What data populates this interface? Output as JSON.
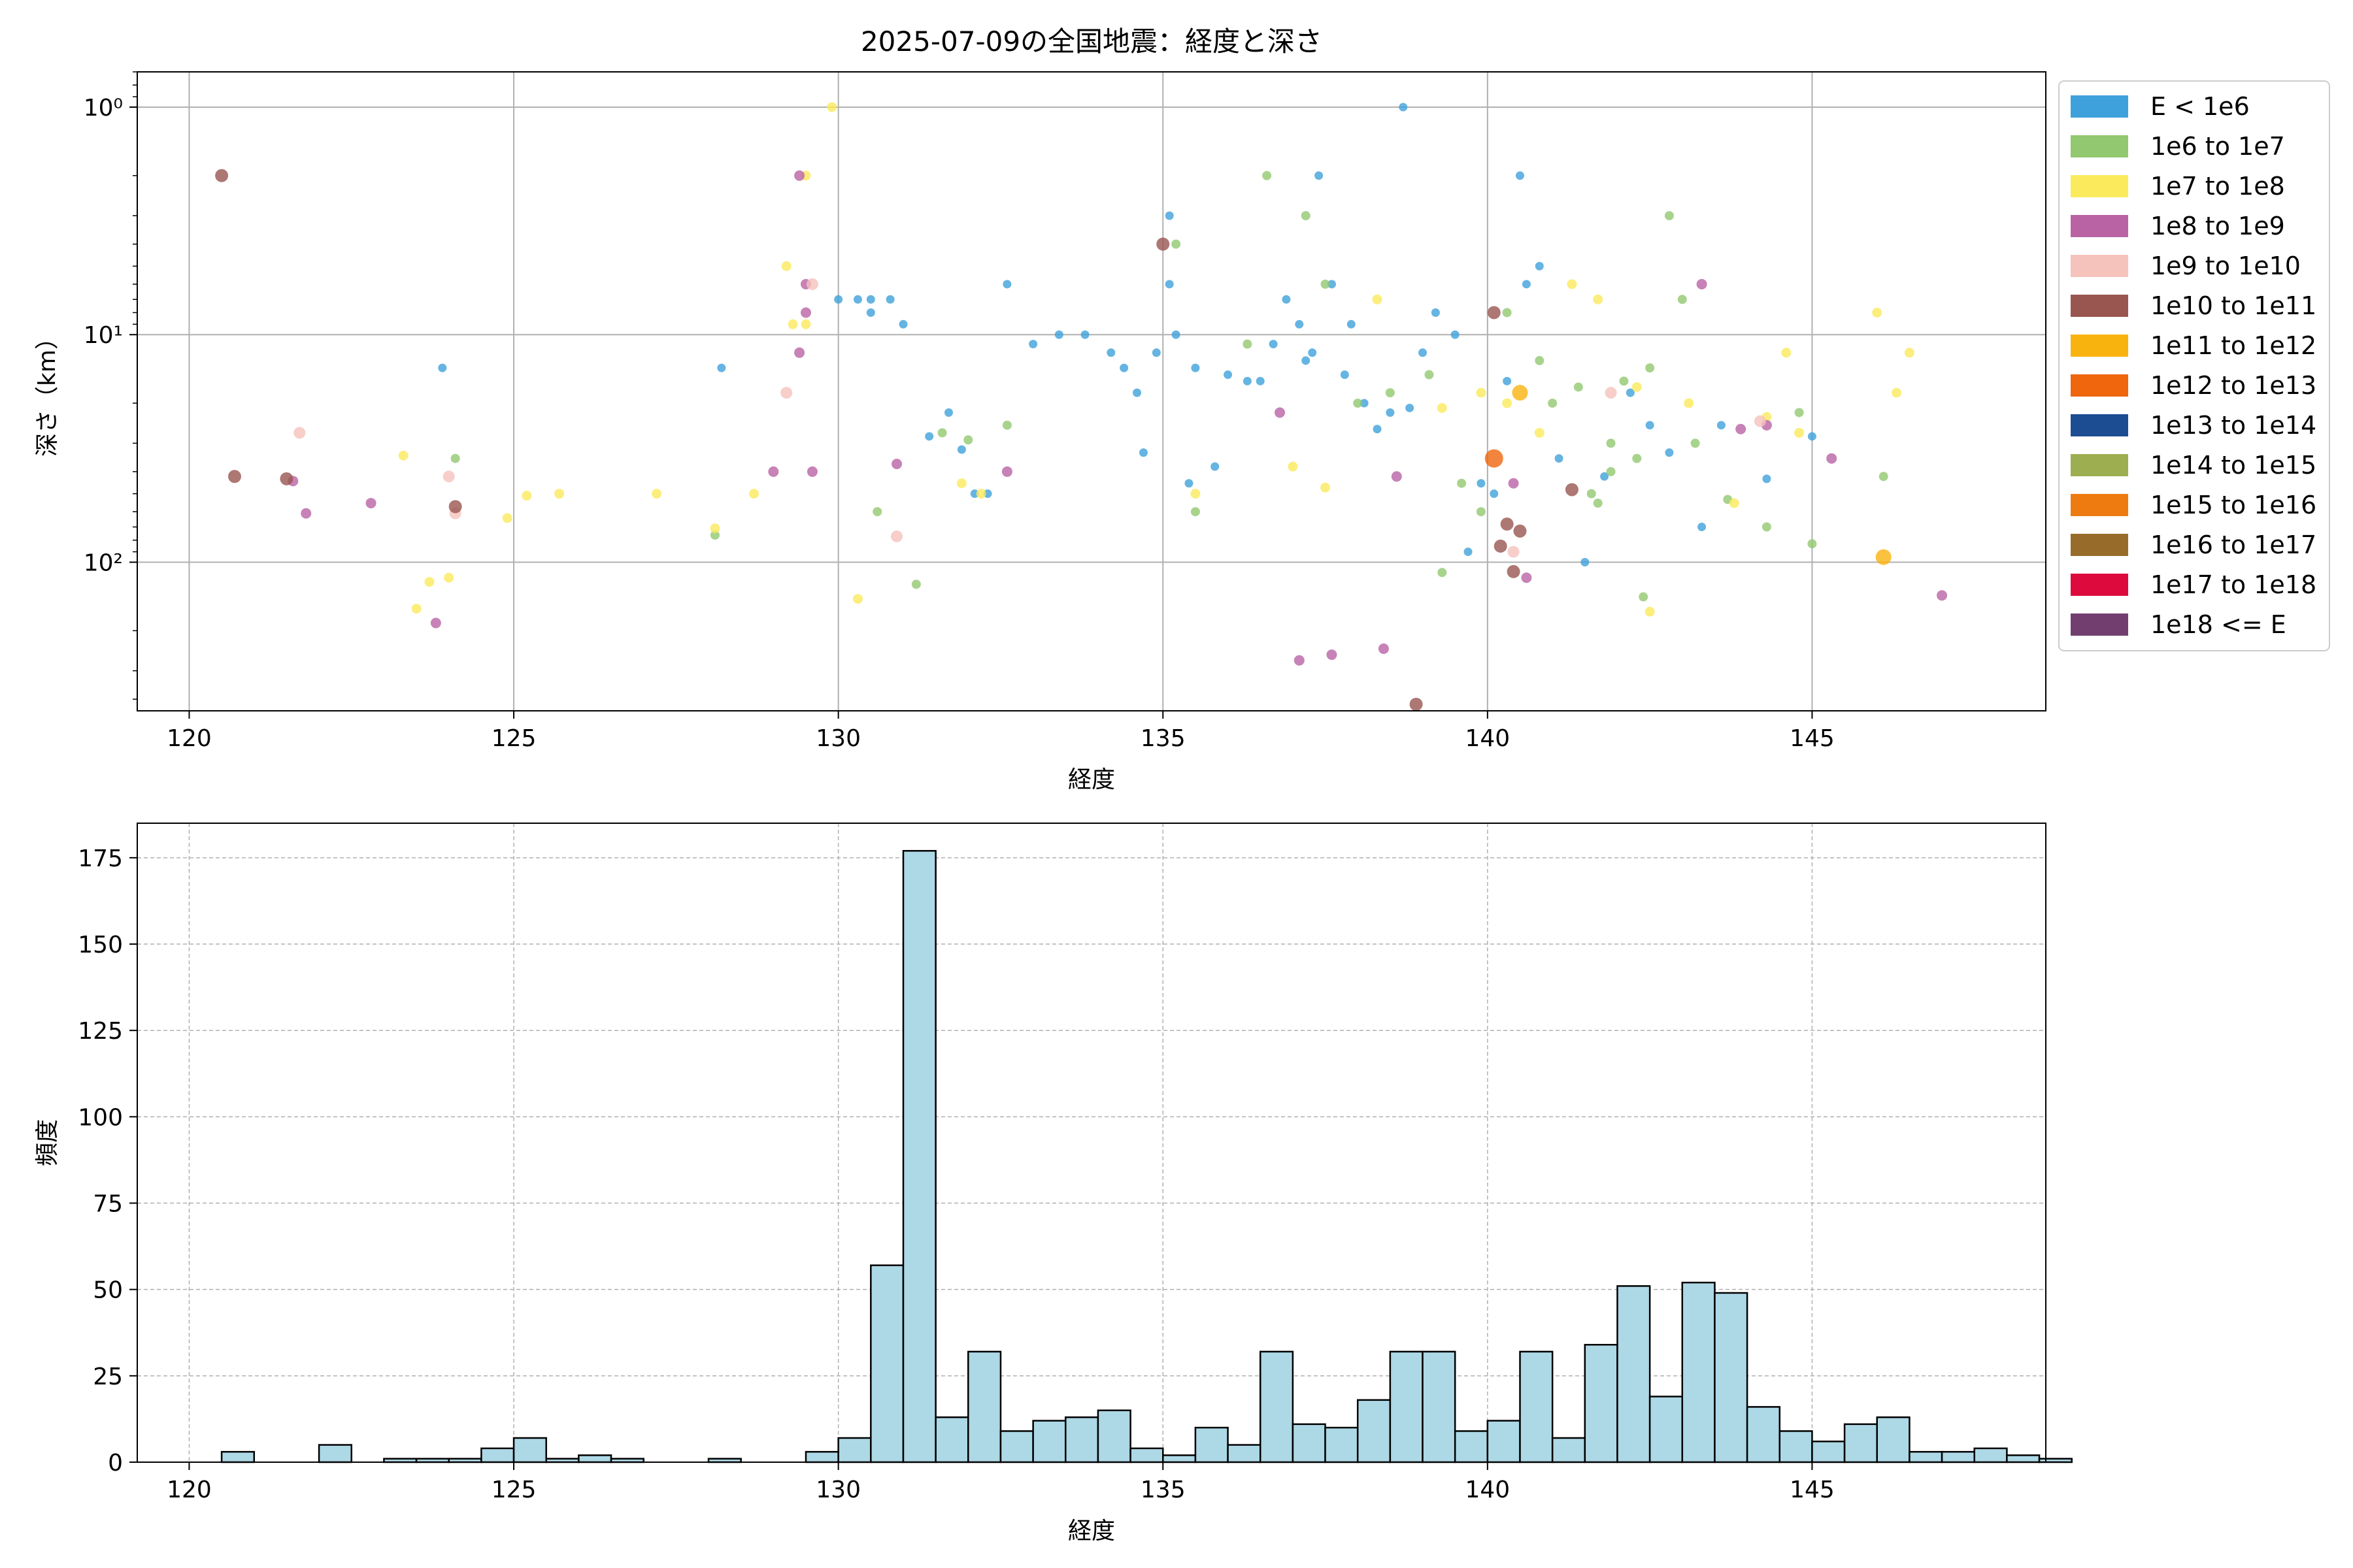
{
  "chart_data": [
    {
      "type": "scatter",
      "title": "2025-07-09の全国地震：経度と深さ",
      "xlabel": "経度",
      "ylabel": "深さ（km）",
      "xlim": [
        119.2,
        148.6
      ],
      "ylim_depth_km": [
        0.7,
        450
      ],
      "y_scale": "log",
      "y_inverted": true,
      "x_ticks": [
        120,
        125,
        130,
        135,
        140,
        145
      ],
      "y_ticks": [
        {
          "value": 1,
          "label": "10⁰"
        },
        {
          "value": 10,
          "label": "10¹"
        },
        {
          "value": 100,
          "label": "10²"
        }
      ],
      "grid": true,
      "legend_position": "outside-right",
      "legend": [
        {
          "label": "E < 1e6",
          "color": "#3ea1db"
        },
        {
          "label": "1e6 to 1e7",
          "color": "#92c86f"
        },
        {
          "label": "1e7 to 1e8",
          "color": "#fbea5c"
        },
        {
          "label": "1e8 to 1e9",
          "color": "#b963a5"
        },
        {
          "label": "1e9 to 1e10",
          "color": "#f5c2bc"
        },
        {
          "label": "1e10 to 1e11",
          "color": "#995550"
        },
        {
          "label": "1e11 to 1e12",
          "color": "#f9b30f"
        },
        {
          "label": "1e12 to 1e13",
          "color": "#ef660d"
        },
        {
          "label": "1e13 to 1e14",
          "color": "#1c4d92"
        },
        {
          "label": "1e14 to 1e15",
          "color": "#9dae50"
        },
        {
          "label": "1e15 to 1e16",
          "color": "#ee7b10"
        },
        {
          "label": "1e16 to 1e17",
          "color": "#976c2b"
        },
        {
          "label": "1e17 to 1e18",
          "color": "#dd0b3d"
        },
        {
          "label": "1e18 <= E",
          "color": "#723e6f"
        }
      ],
      "series": [
        {
          "class": "E < 1e6",
          "color": "#3ea1db",
          "points": [
            [
              123.9,
              14
            ],
            [
              128.2,
              14
            ],
            [
              130.3,
              7
            ],
            [
              130.5,
              8
            ],
            [
              130.8,
              7
            ],
            [
              131.0,
              9
            ],
            [
              131.4,
              28
            ],
            [
              131.7,
              22
            ],
            [
              131.9,
              32
            ],
            [
              132.1,
              50
            ],
            [
              132.3,
              50
            ],
            [
              132.6,
              6
            ],
            [
              133.0,
              11
            ],
            [
              133.4,
              10
            ],
            [
              133.8,
              10
            ],
            [
              134.2,
              12
            ],
            [
              134.4,
              14
            ],
            [
              134.6,
              18
            ],
            [
              134.7,
              33
            ],
            [
              134.9,
              12
            ],
            [
              135.1,
              3
            ],
            [
              135.1,
              6
            ],
            [
              135.2,
              10
            ],
            [
              135.4,
              45
            ],
            [
              135.5,
              14
            ],
            [
              135.8,
              38
            ],
            [
              136.0,
              15
            ],
            [
              136.3,
              16
            ],
            [
              136.5,
              16
            ],
            [
              136.7,
              11
            ],
            [
              136.9,
              7
            ],
            [
              137.1,
              9
            ],
            [
              137.3,
              12
            ],
            [
              137.4,
              2
            ],
            [
              137.6,
              6
            ],
            [
              137.8,
              15
            ],
            [
              137.9,
              9
            ],
            [
              138.1,
              20
            ],
            [
              138.3,
              26
            ],
            [
              138.5,
              22
            ],
            [
              138.7,
              1.0
            ],
            [
              138.8,
              21
            ],
            [
              139.0,
              12
            ],
            [
              139.2,
              8
            ],
            [
              139.5,
              10
            ],
            [
              139.7,
              90
            ],
            [
              139.9,
              45
            ],
            [
              140.1,
              50
            ],
            [
              140.3,
              16
            ],
            [
              140.5,
              2
            ],
            [
              140.6,
              6
            ],
            [
              140.8,
              5
            ],
            [
              141.1,
              35
            ],
            [
              141.5,
              100
            ],
            [
              141.8,
              42
            ],
            [
              142.2,
              18
            ],
            [
              142.5,
              25
            ],
            [
              142.8,
              33
            ],
            [
              143.3,
              70
            ],
            [
              143.6,
              25
            ],
            [
              144.3,
              43
            ],
            [
              145.0,
              28
            ],
            [
              130.0,
              7
            ],
            [
              130.5,
              7
            ],
            [
              137.2,
              13
            ]
          ]
        },
        {
          "class": "1e6 to 1e7",
          "color": "#92c86f",
          "points": [
            [
              124.1,
              35
            ],
            [
              128.1,
              76
            ],
            [
              130.6,
              60
            ],
            [
              131.2,
              125
            ],
            [
              131.6,
              27
            ],
            [
              132.0,
              29
            ],
            [
              132.6,
              25
            ],
            [
              135.2,
              4
            ],
            [
              135.5,
              60
            ],
            [
              136.3,
              11
            ],
            [
              136.6,
              2
            ],
            [
              137.2,
              3
            ],
            [
              137.5,
              6
            ],
            [
              138.0,
              20
            ],
            [
              138.5,
              18
            ],
            [
              139.1,
              15
            ],
            [
              139.6,
              45
            ],
            [
              139.9,
              60
            ],
            [
              140.3,
              8
            ],
            [
              140.8,
              13
            ],
            [
              141.0,
              20
            ],
            [
              141.4,
              17
            ],
            [
              141.7,
              55
            ],
            [
              141.9,
              30
            ],
            [
              142.1,
              16
            ],
            [
              142.5,
              14
            ],
            [
              142.8,
              3
            ],
            [
              143.0,
              7
            ],
            [
              143.2,
              30
            ],
            [
              143.7,
              53
            ],
            [
              144.3,
              70
            ],
            [
              144.8,
              22
            ],
            [
              145.0,
              83
            ],
            [
              146.1,
              42
            ],
            [
              142.4,
              142
            ],
            [
              139.3,
              111
            ],
            [
              141.6,
              50
            ],
            [
              141.9,
              40
            ],
            [
              142.3,
              35
            ]
          ]
        },
        {
          "class": "1e7 to 1e8",
          "color": "#fbea5c",
          "points": [
            [
              123.3,
              34
            ],
            [
              123.5,
              160
            ],
            [
              123.7,
              122
            ],
            [
              124.0,
              117
            ],
            [
              124.9,
              64
            ],
            [
              125.2,
              51
            ],
            [
              125.7,
              50
            ],
            [
              127.2,
              50
            ],
            [
              128.1,
              71
            ],
            [
              128.7,
              50
            ],
            [
              129.2,
              5
            ],
            [
              129.5,
              2
            ],
            [
              129.9,
              1.0
            ],
            [
              130.3,
              145
            ],
            [
              131.9,
              45
            ],
            [
              132.2,
              50
            ],
            [
              135.5,
              50
            ],
            [
              137.0,
              38
            ],
            [
              137.5,
              47
            ],
            [
              138.3,
              7
            ],
            [
              139.3,
              21
            ],
            [
              139.9,
              18
            ],
            [
              140.3,
              20
            ],
            [
              140.8,
              27
            ],
            [
              141.3,
              6
            ],
            [
              141.7,
              7
            ],
            [
              142.3,
              17
            ],
            [
              142.5,
              165
            ],
            [
              143.1,
              20
            ],
            [
              143.8,
              55
            ],
            [
              144.3,
              23
            ],
            [
              144.6,
              12
            ],
            [
              144.8,
              27
            ],
            [
              146.0,
              8
            ],
            [
              146.3,
              18
            ],
            [
              146.5,
              12
            ],
            [
              129.3,
              9
            ],
            [
              129.5,
              9
            ]
          ]
        },
        {
          "class": "1e8 to 1e9",
          "color": "#b963a5",
          "points": [
            [
              121.6,
              44
            ],
            [
              121.8,
              61
            ],
            [
              122.8,
              55
            ],
            [
              123.8,
              185
            ],
            [
              129.0,
              40
            ],
            [
              129.4,
              2
            ],
            [
              129.5,
              6
            ],
            [
              129.6,
              40
            ],
            [
              129.4,
              12
            ],
            [
              129.5,
              8
            ],
            [
              130.9,
              37
            ],
            [
              132.6,
              40
            ],
            [
              136.8,
              22
            ],
            [
              137.1,
              270
            ],
            [
              137.6,
              255
            ],
            [
              138.4,
              240
            ],
            [
              138.6,
              42
            ],
            [
              140.4,
              45
            ],
            [
              140.6,
              117
            ],
            [
              143.3,
              6
            ],
            [
              143.9,
              26
            ],
            [
              144.3,
              25
            ],
            [
              145.3,
              35
            ],
            [
              147.0,
              140
            ]
          ]
        },
        {
          "class": "1e9 to 1e10",
          "color": "#f5c2bc",
          "points": [
            [
              121.7,
              27
            ],
            [
              124.0,
              42
            ],
            [
              124.1,
              61
            ],
            [
              129.2,
              18
            ],
            [
              129.6,
              6
            ],
            [
              130.9,
              77
            ],
            [
              140.4,
              90
            ],
            [
              141.9,
              18
            ],
            [
              144.2,
              24
            ]
          ]
        },
        {
          "class": "1e10 to 1e11",
          "color": "#995550",
          "points": [
            [
              120.5,
              2
            ],
            [
              120.7,
              42
            ],
            [
              121.5,
              43
            ],
            [
              124.1,
              57
            ],
            [
              135.0,
              4
            ],
            [
              138.9,
              450
            ],
            [
              140.1,
              8
            ],
            [
              140.2,
              85
            ],
            [
              140.3,
              68
            ],
            [
              140.4,
              110
            ],
            [
              140.5,
              73
            ],
            [
              141.3,
              48
            ]
          ]
        },
        {
          "class": "1e11 to 1e12",
          "color": "#f9b30f",
          "points": [
            [
              140.5,
              18
            ],
            [
              146.1,
              95
            ]
          ]
        },
        {
          "class": "1e12 to 1e13",
          "color": "#ef660d",
          "points": [
            [
              140.1,
              35
            ]
          ]
        }
      ]
    },
    {
      "type": "bar",
      "title": "",
      "xlabel": "経度",
      "ylabel": "頻度",
      "xlim": [
        119.2,
        148.6
      ],
      "ylim": [
        0,
        185
      ],
      "x_ticks": [
        120,
        125,
        130,
        135,
        140,
        145
      ],
      "y_ticks": [
        0,
        25,
        50,
        75,
        100,
        125,
        150,
        175
      ],
      "grid": true,
      "bar_color": "#add8e6",
      "bin_start": 120.5,
      "bin_width": 0.5,
      "values": [
        3,
        0,
        0,
        5,
        0,
        1,
        1,
        1,
        4,
        7,
        1,
        2,
        1,
        0,
        0,
        1,
        0,
        0,
        3,
        7,
        57,
        177,
        13,
        32,
        9,
        12,
        13,
        15,
        4,
        2,
        10,
        5,
        32,
        11,
        10,
        18,
        32,
        32,
        9,
        12,
        32,
        7,
        34,
        51,
        19,
        52,
        49,
        16,
        9,
        6,
        11,
        13,
        3,
        3,
        4,
        2,
        1
      ]
    }
  ]
}
